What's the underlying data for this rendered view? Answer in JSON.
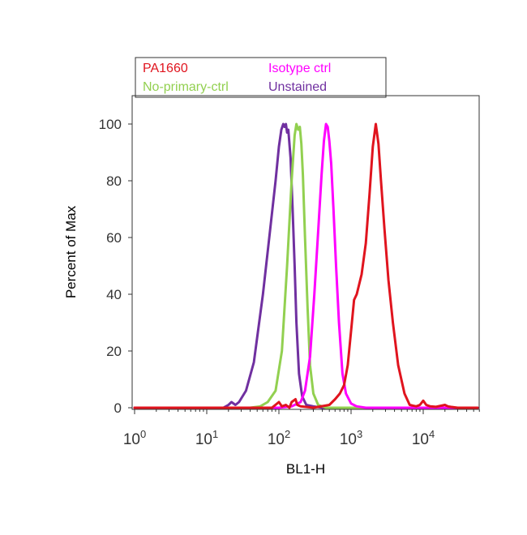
{
  "chart_data": {
    "type": "line",
    "xlabel": "BL1-H",
    "ylabel": "Percent of Max",
    "x_scale": "log",
    "xlim": [
      1,
      60000
    ],
    "ylim": [
      0,
      110
    ],
    "x_ticks": [
      {
        "value": 1,
        "base": "10",
        "exp": "0"
      },
      {
        "value": 10,
        "base": "10",
        "exp": "1"
      },
      {
        "value": 100,
        "base": "10",
        "exp": "2"
      },
      {
        "value": 1000,
        "base": "10",
        "exp": "3"
      },
      {
        "value": 10000,
        "base": "10",
        "exp": "4"
      }
    ],
    "y_ticks": [
      0,
      20,
      40,
      60,
      80,
      100
    ],
    "grid": false,
    "legend_position": "top-left, above plot",
    "series": [
      {
        "name": "Unstained",
        "color": "#7030a0",
        "x": [
          1,
          17,
          20,
          22,
          25,
          28,
          35,
          45,
          60,
          75,
          90,
          100,
          108,
          115,
          120,
          125,
          130,
          135,
          145,
          155,
          165,
          175,
          190,
          210,
          240,
          300,
          400,
          1000,
          10000,
          60000
        ],
        "y": [
          0,
          0,
          1,
          2,
          1,
          2,
          6,
          16,
          40,
          62,
          80,
          92,
          98,
          100,
          99,
          100,
          97,
          98,
          88,
          70,
          50,
          30,
          12,
          4,
          1,
          0.5,
          0,
          0,
          0,
          0
        ]
      },
      {
        "name": "No-primary-ctrl",
        "color": "#92d050",
        "x": [
          1,
          40,
          55,
          70,
          90,
          110,
          130,
          150,
          165,
          175,
          185,
          195,
          205,
          215,
          230,
          250,
          270,
          300,
          350,
          450,
          1000,
          10000,
          60000
        ],
        "y": [
          0,
          0,
          0.5,
          2,
          6,
          20,
          50,
          80,
          96,
          100,
          98,
          99,
          93,
          82,
          60,
          35,
          15,
          5,
          1,
          0,
          0,
          0,
          0
        ]
      },
      {
        "name": "Isotype ctrl",
        "color": "#ff00ff",
        "x": [
          1,
          100,
          150,
          200,
          230,
          270,
          310,
          350,
          390,
          420,
          450,
          475,
          500,
          530,
          570,
          620,
          680,
          760,
          850,
          1000,
          1200,
          1600,
          10000,
          60000
        ],
        "y": [
          0,
          0,
          0.5,
          2,
          6,
          18,
          40,
          62,
          82,
          94,
          100,
          99,
          94,
          86,
          70,
          50,
          30,
          12,
          5,
          1.5,
          0.5,
          0,
          0,
          0
        ]
      },
      {
        "name": "PA1660",
        "color": "#e0141e",
        "x": [
          1,
          80,
          100,
          110,
          125,
          140,
          150,
          170,
          180,
          200,
          300,
          500,
          600,
          700,
          800,
          900,
          1000,
          1100,
          1200,
          1400,
          1600,
          1800,
          2000,
          2200,
          2400,
          2600,
          2900,
          3300,
          3800,
          4500,
          5500,
          6500,
          8000,
          9000,
          10000,
          11000,
          12500,
          15000,
          20000,
          22000,
          24000,
          30000,
          60000
        ],
        "y": [
          0,
          0,
          2,
          0.5,
          1,
          0,
          2,
          3,
          1,
          0.5,
          0,
          1,
          3,
          5,
          8,
          15,
          27,
          38,
          40,
          47,
          58,
          75,
          92,
          100,
          93,
          80,
          63,
          45,
          30,
          15,
          5,
          1,
          0.5,
          1,
          2.5,
          1,
          0.5,
          0.3,
          1,
          0.5,
          0.3,
          0,
          0
        ]
      }
    ]
  },
  "legend": {
    "items": [
      {
        "label": "PA1660",
        "color": "#e0141e"
      },
      {
        "label": "Isotype ctrl",
        "color": "#ff00ff"
      },
      {
        "label": "No-primary-ctrl",
        "color": "#92d050"
      },
      {
        "label": "Unstained",
        "color": "#7030a0"
      }
    ]
  }
}
